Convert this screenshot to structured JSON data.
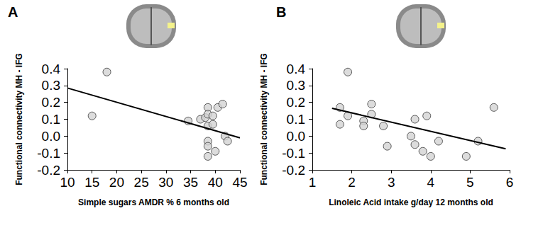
{
  "chart_data": [
    {
      "type": "scatter",
      "title": "A",
      "x_label": "Simple sugars AMDR % 6 months old",
      "y_label": "Functional connectivity MH - IFG",
      "xlim": [
        10,
        45
      ],
      "xticks": [
        10,
        15,
        20,
        25,
        30,
        35,
        40,
        45
      ],
      "ylim": [
        -0.2,
        0.4
      ],
      "yticks": [
        -0.2,
        -0.1,
        {
          "value": 0,
          "label": "0.0"
        },
        0.1,
        0.2,
        0.3,
        0.4
      ],
      "grid": false,
      "series": [
        {
          "type": "scatter",
          "color": "#d3d3d3",
          "marker": "circle",
          "x": [
            15,
            18,
            34.5,
            37,
            38,
            38.5,
            38.5,
            38.5,
            38.5,
            38.5,
            38.5,
            39.5,
            39.5,
            40,
            40.5,
            41.5,
            42,
            42.5
          ],
          "values": [
            0.12,
            0.38,
            0.09,
            0.1,
            0.11,
            0.17,
            0.13,
            0.06,
            -0.03,
            -0.06,
            -0.12,
            0.12,
            0.07,
            -0.09,
            0.17,
            0.19,
            0.0,
            -0.03
          ]
        },
        {
          "type": "line",
          "color": "#000000",
          "line_style": "solid",
          "x": [
            10,
            45
          ],
          "values": [
            0.285,
            -0.01
          ]
        }
      ]
    },
    {
      "type": "scatter",
      "title": "B",
      "x_label": "Linoleic Acid intake g/day 12 months old",
      "y_label": "Functional connectivity MH - IFG",
      "xlim": [
        1,
        6
      ],
      "xticks": [
        1,
        2,
        3,
        4,
        5,
        6
      ],
      "ylim": [
        -0.2,
        0.4
      ],
      "yticks": [
        -0.2,
        -0.1,
        {
          "value": 0,
          "label": "0.0"
        },
        0.1,
        0.2,
        0.3,
        0.4
      ],
      "grid": false,
      "series": [
        {
          "type": "scatter",
          "color": "#d3d3d3",
          "marker": "circle",
          "x": [
            1.7,
            1.7,
            1.9,
            1.9,
            2.3,
            2.3,
            2.5,
            2.5,
            2.8,
            2.9,
            3.5,
            3.6,
            3.6,
            3.8,
            3.9,
            4.0,
            4.2,
            4.9,
            5.2,
            5.6
          ],
          "values": [
            0.07,
            0.17,
            0.12,
            0.38,
            0.09,
            0.06,
            0.19,
            0.13,
            0.06,
            -0.06,
            0.0,
            0.1,
            -0.05,
            -0.09,
            0.12,
            -0.12,
            -0.03,
            -0.12,
            -0.03,
            0.17
          ]
        },
        {
          "type": "line",
          "color": "#000000",
          "line_style": "solid",
          "x": [
            1.5,
            5.9
          ],
          "values": [
            0.165,
            -0.075
          ]
        }
      ]
    }
  ]
}
